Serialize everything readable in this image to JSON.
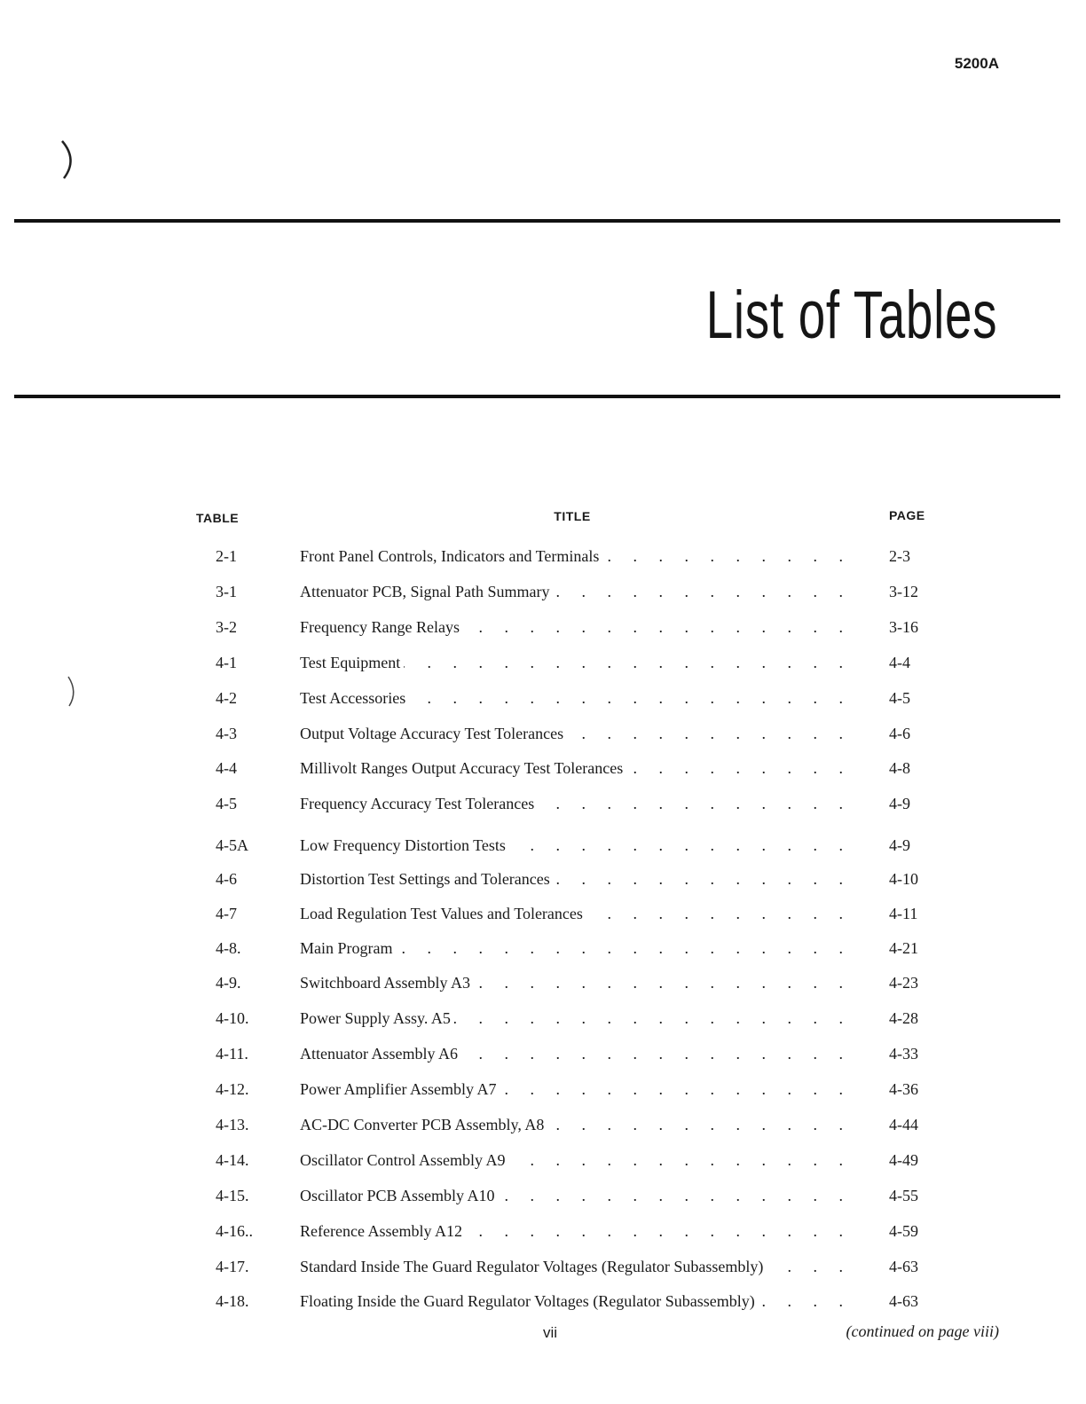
{
  "header": {
    "model": "5200A",
    "title": "List of Tables"
  },
  "columns": {
    "table": "TABLE",
    "title": "TITLE",
    "page": "PAGE"
  },
  "entries": [
    {
      "table": "2-1",
      "title": "Front Panel Controls, Indicators and Terminals",
      "page": "2-3"
    },
    {
      "table": "3-1",
      "title": "Attenuator PCB, Signal Path Summary",
      "page": "3-12"
    },
    {
      "table": "3-2",
      "title": "Frequency Range Relays",
      "page": "3-16"
    },
    {
      "table": "4-1",
      "title": "Test Equipment",
      "page": "4-4"
    },
    {
      "table": "4-2",
      "title": "Test Accessories",
      "page": "4-5"
    },
    {
      "table": "4-3",
      "title": "Output Voltage Accuracy Test Tolerances",
      "page": "4-6"
    },
    {
      "table": "4-4",
      "title": "Millivolt Ranges Output Accuracy Test Tolerances",
      "page": "4-8"
    },
    {
      "table": "4-5",
      "title": "Frequency Accuracy Test Tolerances",
      "page": "4-9"
    },
    {
      "table": "4-5A",
      "title": "Low Frequency  Distortion Tests",
      "page": "4-9"
    },
    {
      "table": "4-6",
      "title": "Distortion Test Settings and Tolerances",
      "page": "4-10"
    },
    {
      "table": "4-7",
      "title": "Load Regulation Test Values and Tolerances",
      "page": "4-11"
    },
    {
      "table": "4-8.",
      "title": "Main Program",
      "page": "4-21"
    },
    {
      "table": "4-9.",
      "title": "Switchboard Assembly A3",
      "page": "4-23"
    },
    {
      "table": "4-10.",
      "title": "Power Supply Assy. A5",
      "page": "4-28"
    },
    {
      "table": "4-11.",
      "title": "Attenuator Assembly A6",
      "page": "4-33"
    },
    {
      "table": "4-12.",
      "title": "Power Amplifier Assembly A7",
      "page": "4-36"
    },
    {
      "table": "4-13.",
      "title": "AC-DC Converter PCB Assembly, A8",
      "page": "4-44"
    },
    {
      "table": "4-14.",
      "title": "Oscillator Control Assembly A9",
      "page": "4-49"
    },
    {
      "table": "4-15.",
      "title": "Oscillator PCB Assembly A10",
      "page": "4-55"
    },
    {
      "table": "4-16..",
      "title": "Reference Assembly A12",
      "page": "4-59"
    },
    {
      "table": "4-17.",
      "title": "Standard Inside The Guard Regulator Voltages (Regulator Subassembly)",
      "page": "4-63"
    },
    {
      "table": "4-18.",
      "title": "Floating Inside the Guard Regulator Voltages (Regulator Subassembly)",
      "page": "4-63"
    }
  ],
  "footer": {
    "folio": "vii",
    "continued": "(continued on page viii)"
  }
}
